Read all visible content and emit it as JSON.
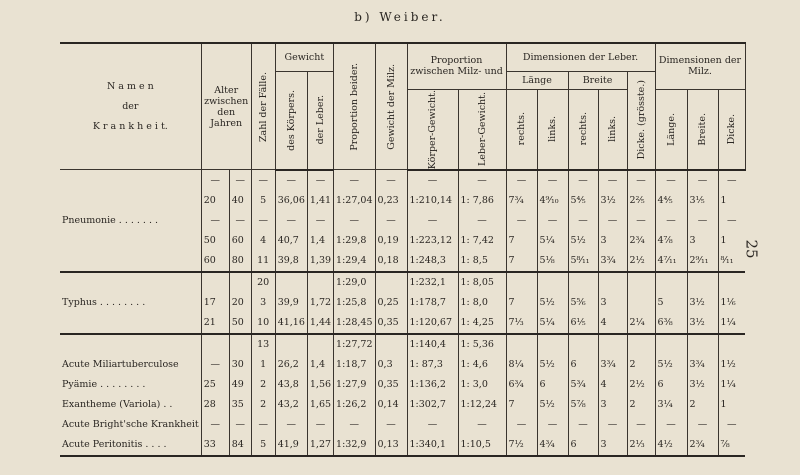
{
  "title": "b) Weiber.",
  "page_number": "25",
  "header": {
    "name": "N a m e n\nder\nK r a n k h e i t.",
    "age": "Alter zwischen den Jahren",
    "count": "Zahl der Fälle.",
    "weight": "Gewicht",
    "weight_body": "des Körpers.",
    "weight_liver": "der Leber.",
    "proportion_both": "Proportion beider.",
    "weight_spleen": "Gewicht der Milz.",
    "proportion_spleen": "Proportion zwischen Milz- und",
    "body_weight": "Körper-Gewicht.",
    "liver_weight": "Leber-Gewicht.",
    "dim_liver": "Dimensionen der Leber.",
    "length": "Länge",
    "width": "Breite",
    "thickness": "Dicke. (grösste.)",
    "right": "rechts.",
    "left": "links.",
    "dim_spleen": "Dimensionen der Milz.",
    "s_length": "Länge.",
    "s_width": "Breite.",
    "s_thick": "Dicke."
  },
  "rows": [
    {
      "group": "Pneumonie . . . . . . .",
      "span": 5,
      "cells": [
        "—",
        "—",
        "—",
        "—",
        "—",
        "—",
        "—",
        "—",
        "—",
        "—",
        "—",
        "—",
        "—",
        "—",
        "—",
        "—",
        "—"
      ]
    },
    {
      "cells": [
        "20",
        "40",
        "5",
        "36,06",
        "1,41",
        "1:27,04",
        "0,23",
        "1:210,14",
        "1: 7,86",
        "7¾",
        "4⁹⁄₁₀",
        "5⅘",
        "3½",
        "2⅖",
        "4⅘",
        "3⅕",
        "1"
      ]
    },
    {
      "cells": [
        "—",
        "—",
        "—",
        "—",
        "—",
        "—",
        "—",
        "—",
        "—",
        "—",
        "—",
        "—",
        "—",
        "—",
        "—",
        "—",
        "—"
      ]
    },
    {
      "cells": [
        "50",
        "60",
        "4",
        "40,7",
        "1,4",
        "1:29,8",
        "0,19",
        "1:223,12",
        "1: 7,42",
        "7",
        "5¼",
        "5½",
        "3",
        "2¾",
        "4⅞",
        "3",
        "1"
      ]
    },
    {
      "cells": [
        "60",
        "80",
        "11",
        "39,8",
        "1,39",
        "1:29,4",
        "0,18",
        "1:248,3",
        "1: 8,5",
        "7",
        "5⅛",
        "5⁸⁄₁₁",
        "3¾",
        "2½",
        "4⁷⁄₁₁",
        "2⁹⁄₁₁",
        "⁸⁄₁₁"
      ],
      "sep": true
    },
    {
      "group": "Typhus . . . . . . . .",
      "span": 3,
      "cells": [
        "",
        "",
        "20",
        "",
        "",
        "1:29,0",
        "",
        "1:232,1",
        "1: 8,05",
        "",
        "",
        "",
        "",
        "",
        "",
        "",
        ""
      ]
    },
    {
      "cells": [
        "17",
        "20",
        "3",
        "39,9",
        "1,72",
        "1:25,8",
        "0,25",
        "1:178,7",
        "1: 8,0",
        "7",
        "5½",
        "5⅚",
        "3",
        "",
        "5",
        "3½",
        "1⅙"
      ]
    },
    {
      "cells": [
        "21",
        "50",
        "10",
        "41,16",
        "1,44",
        "1:28,45",
        "0,35",
        "1:120,67",
        "1: 4,25",
        "7⅓",
        "5¼",
        "6⅕",
        "4",
        "2¼",
        "6⅜",
        "3½",
        "1¼"
      ],
      "sep": true
    },
    {
      "group": "",
      "span": 1,
      "cells": [
        "",
        "",
        "13",
        "",
        "",
        "1:27,72",
        "",
        "1:140,4",
        "1: 5,36",
        "",
        "",
        "",
        "",
        "",
        "",
        "",
        ""
      ]
    },
    {
      "group": "Acute Miliartuberculose",
      "span": 1,
      "cells": [
        "—",
        "30",
        "1",
        "26,2",
        "1,4",
        "1:18,7",
        "0,3",
        "1: 87,3",
        "1: 4,6",
        "8¼",
        "5½",
        "6",
        "3¾",
        "2",
        "5½",
        "3¾",
        "1½"
      ]
    },
    {
      "group": "Pyämie . . . . . . . .",
      "span": 1,
      "cells": [
        "25",
        "49",
        "2",
        "43,8",
        "1,56",
        "1:27,9",
        "0,35",
        "1:136,2",
        "1: 3,0",
        "6¾",
        "6",
        "5¾",
        "4",
        "2½",
        "6",
        "3½",
        "1¼"
      ]
    },
    {
      "group": "Exantheme (Variola) . .",
      "span": 1,
      "cells": [
        "28",
        "35",
        "2",
        "43,2",
        "1,65",
        "1:26,2",
        "0,14",
        "1:302,7",
        "1:12,24",
        "7",
        "5½",
        "5⅞",
        "3",
        "2",
        "3¼",
        "2",
        "1"
      ]
    },
    {
      "group": "Acute Bright'sche Krankheit",
      "span": 1,
      "cells": [
        "—",
        "—",
        "—",
        "—",
        "—",
        "—",
        "—",
        "—",
        "—",
        "—",
        "—",
        "—",
        "—",
        "—",
        "—",
        "—",
        "—"
      ]
    },
    {
      "group": "Acute Peritonitis . . . .",
      "span": 1,
      "cells": [
        "33",
        "84",
        "5",
        "41,9",
        "1,27",
        "1:32,9",
        "0,13",
        "1:340,1",
        "1:10,5",
        "7½",
        "4¾",
        "6",
        "3",
        "2⅓",
        "4½",
        "2¾",
        "⅞"
      ]
    }
  ]
}
